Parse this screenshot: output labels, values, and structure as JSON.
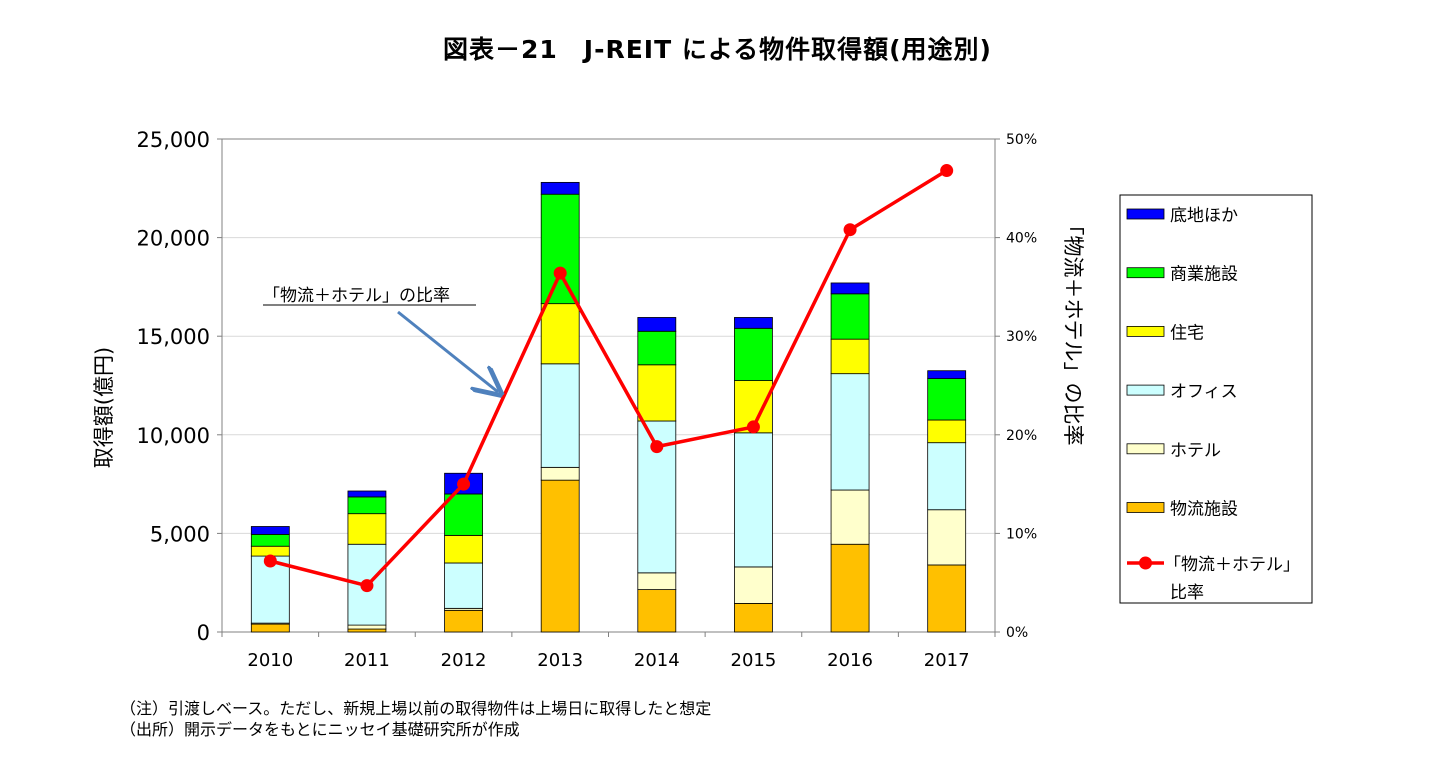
{
  "chart_data": {
    "type": "bar",
    "title": "図表－21　J-REIT による物件取得額(用途別)",
    "categories": [
      "2010",
      "2011",
      "2012",
      "2013",
      "2014",
      "2015",
      "2016",
      "2017"
    ],
    "ylabel": "取得額(億円)",
    "ylim": [
      0,
      25000
    ],
    "yticks": [
      "0",
      "5,000",
      "10,000",
      "15,000",
      "20,000",
      "25,000"
    ],
    "y2label": "「物流＋ホテル」の比率",
    "y2lim": [
      0,
      50
    ],
    "y2ticks": [
      "0%",
      "10%",
      "20%",
      "30%",
      "40%",
      "50%"
    ],
    "grid": true,
    "legend_position": "right",
    "series": [
      {
        "name": "物流施設",
        "color": "#FFC000",
        "values": [
          400,
          150,
          1100,
          7700,
          2150,
          1450,
          4450,
          3400
        ]
      },
      {
        "name": "ホテル",
        "color": "#FFFFCC",
        "values": [
          50,
          200,
          100,
          650,
          850,
          1850,
          2750,
          2800
        ]
      },
      {
        "name": "オフィス",
        "color": "#CCFFFF",
        "values": [
          3400,
          4100,
          2300,
          5250,
          7700,
          6800,
          5900,
          3400
        ]
      },
      {
        "name": "住宅",
        "color": "#FFFF00",
        "values": [
          500,
          1550,
          1400,
          3050,
          2850,
          2650,
          1750,
          1150
        ]
      },
      {
        "name": "商業施設",
        "color": "#00FF00",
        "values": [
          600,
          850,
          2100,
          5550,
          1700,
          2650,
          2300,
          2100
        ]
      },
      {
        "name": "底地ほか",
        "color": "#0000FF",
        "values": [
          400,
          300,
          1050,
          600,
          700,
          550,
          550,
          400
        ]
      }
    ],
    "line_series": {
      "name": "「物流＋ホテル」比率",
      "color": "#FF0000",
      "axis": "right",
      "values": [
        7.2,
        4.7,
        15.0,
        36.4,
        18.8,
        20.8,
        40.8,
        46.8
      ]
    },
    "annotation": "「物流＋ホテル」の比率"
  },
  "notes": [
    "（注）引渡しベース。ただし、新規上場以前の取得物件は上場日に取得したと想定",
    "（出所）開示データをもとにニッセイ基礎研究所が作成"
  ],
  "legend_line_label_lines": [
    "「物流＋ホテル」",
    "比率"
  ]
}
